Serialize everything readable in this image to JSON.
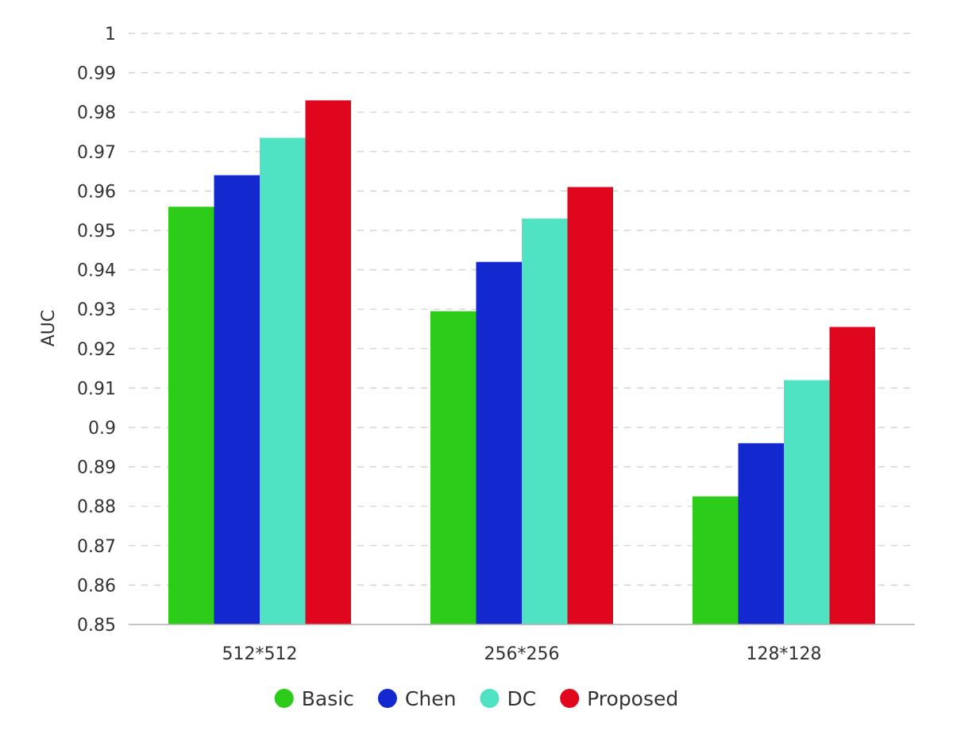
{
  "chart_data": {
    "type": "bar",
    "title": "",
    "xlabel": "",
    "ylabel": "AUC",
    "categories": [
      "512*512",
      "256*256",
      "128*128"
    ],
    "series": [
      {
        "name": "Basic",
        "color": "#2ecc1a",
        "values": [
          0.956,
          0.9295,
          0.8825
        ]
      },
      {
        "name": "Chen",
        "color": "#1428d0",
        "values": [
          0.964,
          0.942,
          0.896
        ]
      },
      {
        "name": "DC",
        "color": "#4fe3c3",
        "values": [
          0.9735,
          0.953,
          0.912
        ]
      },
      {
        "name": "Proposed",
        "color": "#e0061e",
        "values": [
          0.983,
          0.961,
          0.9255
        ]
      }
    ],
    "ylim": [
      0.85,
      1
    ],
    "yticks": [
      "0.85",
      "0.86",
      "0.87",
      "0.88",
      "0.89",
      "0.9",
      "0.91",
      "0.92",
      "0.93",
      "0.94",
      "0.95",
      "0.96",
      "0.97",
      "0.98",
      "0.99",
      "1"
    ],
    "grid": true,
    "legend_position": "bottom"
  }
}
